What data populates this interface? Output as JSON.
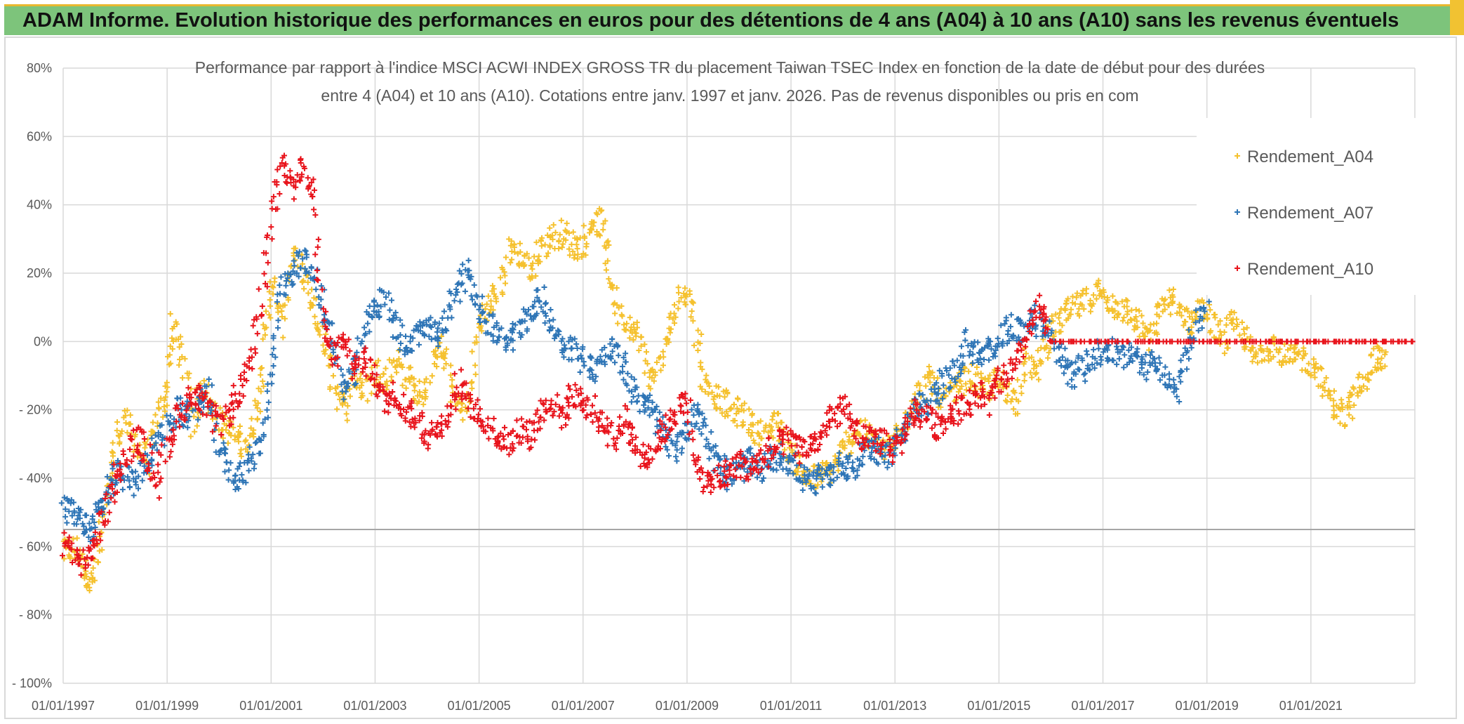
{
  "banner": {
    "text": "ADAM Informe. Evolution historique des performances en euros pour des détentions de 4 ans (A04) à 10 ans (A10) sans les revenus éventuels"
  },
  "chart_data": {
    "type": "scatter",
    "title_line1": "Performance par rapport à l'indice MSCI ACWI INDEX GROSS TR  du placement Taiwan TSEC Index en fonction de la date de début pour des durées",
    "title_line2": "entre 4 (A04) et 10 ans (A10). Cotations entre janv. 1997 et janv. 2026. Pas de revenus disponibles ou pris en com",
    "xlabel": "",
    "ylabel": "",
    "xlim": [
      1997.0,
      2023.0
    ],
    "ylim": [
      -100,
      80
    ],
    "x_tick_labels": [
      "01/01/1997",
      "01/01/1999",
      "01/01/2001",
      "01/01/2003",
      "01/01/2005",
      "01/01/2007",
      "01/01/2009",
      "01/01/2011",
      "01/01/2013",
      "01/01/2015",
      "01/01/2017",
      "01/01/2019",
      "01/01/2021"
    ],
    "y_tick_labels": [
      "80%",
      "60%",
      "40%",
      "20%",
      "0%",
      "- 20%",
      "- 40%",
      "- 60%",
      "- 80%",
      "- 100%"
    ],
    "y_tick_values": [
      80,
      60,
      40,
      20,
      0,
      -20,
      -40,
      -60,
      -80,
      -100
    ],
    "grid": true,
    "legend_position": "top-right",
    "series": [
      {
        "name": "Rendement_A04",
        "color": "#f5c12e",
        "marker": "+",
        "x": [
          1997.0,
          1997.2,
          1997.4,
          1997.55,
          1997.7,
          1997.85,
          1998.0,
          1998.2,
          1998.4,
          1998.6,
          1998.8,
          1999.0,
          1999.1,
          1999.3,
          1999.5,
          1999.7,
          1999.9,
          2000.1,
          2000.3,
          2000.5,
          2000.7,
          2000.85,
          2001.0,
          2001.2,
          2001.4,
          2001.6,
          2001.8,
          2002.0,
          2002.2,
          2002.4,
          2002.6,
          2002.8,
          2003.0,
          2003.2,
          2003.4,
          2003.6,
          2003.8,
          2004.0,
          2004.2,
          2004.4,
          2004.6,
          2004.8,
          2005.0,
          2005.2,
          2005.4,
          2005.6,
          2005.8,
          2006.0,
          2006.2,
          2006.4,
          2006.6,
          2006.8,
          2007.0,
          2007.2,
          2007.35,
          2007.5,
          2007.7,
          2007.9,
          2008.1,
          2008.3,
          2008.5,
          2008.7,
          2008.9,
          2009.1,
          2009.3,
          2009.5,
          2009.7,
          2009.9,
          2010.1,
          2010.3,
          2010.5,
          2010.7,
          2010.9,
          2011.1,
          2011.3,
          2011.5,
          2011.7,
          2011.9,
          2012.1,
          2012.3,
          2012.5,
          2012.7,
          2012.9,
          2013.1,
          2013.3,
          2013.5,
          2013.7,
          2013.9,
          2014.1,
          2014.3,
          2014.5,
          2014.7,
          2014.9,
          2015.1,
          2015.3,
          2015.5,
          2015.7,
          2015.9,
          2016.1,
          2016.3,
          2016.5,
          2016.7,
          2016.9,
          2017.1,
          2017.3,
          2017.5,
          2017.7,
          2017.9,
          2018.1,
          2018.3,
          2018.5,
          2018.7,
          2018.9,
          2019.1,
          2019.3,
          2019.5,
          2019.7,
          2019.9,
          2020.1,
          2020.3,
          2020.5,
          2020.7,
          2020.9,
          2021.1,
          2021.3,
          2021.5,
          2021.7,
          2021.9,
          2022.1,
          2022.3,
          2022.4
        ],
        "y": [
          -62,
          -60,
          -66,
          -71,
          -60,
          -45,
          -30,
          -22,
          -30,
          -35,
          -24,
          -15,
          5,
          -5,
          -25,
          -12,
          -20,
          -25,
          -28,
          -30,
          -22,
          -5,
          18,
          5,
          25,
          20,
          10,
          0,
          -12,
          -20,
          -10,
          -15,
          -8,
          -12,
          -5,
          -10,
          -15,
          -15,
          0,
          -8,
          -20,
          -18,
          5,
          10,
          15,
          28,
          25,
          20,
          28,
          30,
          32,
          28,
          28,
          35,
          35,
          20,
          8,
          5,
          0,
          -12,
          -5,
          5,
          15,
          12,
          -10,
          -15,
          -18,
          -20,
          -22,
          -25,
          -28,
          -22,
          -30,
          -35,
          -40,
          -40,
          -38,
          -35,
          -30,
          -25,
          -28,
          -30,
          -32,
          -25,
          -20,
          -15,
          -10,
          -18,
          -15,
          -12,
          -10,
          -15,
          -12,
          -12,
          -18,
          -5,
          -10,
          0,
          5,
          8,
          10,
          12,
          15,
          12,
          10,
          8,
          5,
          0,
          10,
          12,
          8,
          5,
          10,
          5,
          0,
          5,
          2,
          -5,
          -2,
          0,
          -5,
          -5,
          -5,
          -8,
          -15,
          -20,
          -22,
          -15,
          -8,
          -5,
          -5
        ],
        "note": "approximate trend of the point cloud"
      },
      {
        "name": "Rendement_A07",
        "color": "#2e75b6",
        "marker": "+",
        "x": [
          1997.0,
          1997.2,
          1997.4,
          1997.55,
          1997.7,
          1997.85,
          1998.0,
          1998.2,
          1998.4,
          1998.6,
          1998.8,
          1999.0,
          1999.2,
          1999.4,
          1999.6,
          1999.8,
          2000.0,
          2000.2,
          2000.4,
          2000.6,
          2000.8,
          2001.0,
          2001.2,
          2001.4,
          2001.6,
          2001.8,
          2002.0,
          2002.2,
          2002.4,
          2002.6,
          2002.8,
          2003.0,
          2003.2,
          2003.4,
          2003.6,
          2003.8,
          2004.0,
          2004.2,
          2004.4,
          2004.6,
          2004.8,
          2005.0,
          2005.2,
          2005.4,
          2005.6,
          2005.8,
          2006.0,
          2006.2,
          2006.4,
          2006.6,
          2006.8,
          2007.0,
          2007.2,
          2007.4,
          2007.6,
          2007.8,
          2008.0,
          2008.2,
          2008.4,
          2008.6,
          2008.8,
          2009.0,
          2009.2,
          2009.4,
          2009.6,
          2009.8,
          2010.0,
          2010.2,
          2010.4,
          2010.6,
          2010.8,
          2011.0,
          2011.2,
          2011.4,
          2011.6,
          2011.8,
          2012.0,
          2012.2,
          2012.4,
          2012.6,
          2012.8,
          2013.0,
          2013.2,
          2013.4,
          2013.6,
          2013.8,
          2014.0,
          2014.2,
          2014.4,
          2014.6,
          2014.8,
          2015.0,
          2015.2,
          2015.4,
          2015.6,
          2015.8,
          2016.0,
          2016.2,
          2016.4,
          2016.6,
          2016.8,
          2017.0,
          2017.2,
          2017.4,
          2017.6,
          2017.8,
          2018.0,
          2018.2,
          2018.4,
          2018.6,
          2018.8,
          2019.0
        ],
        "y": [
          -49,
          -50,
          -53,
          -55,
          -50,
          -45,
          -38,
          -40,
          -42,
          -35,
          -30,
          -25,
          -20,
          -22,
          -18,
          -15,
          -30,
          -38,
          -40,
          -35,
          -28,
          -10,
          15,
          18,
          25,
          20,
          10,
          0,
          -15,
          -10,
          5,
          10,
          12,
          5,
          -2,
          2,
          5,
          0,
          8,
          15,
          22,
          10,
          5,
          2,
          0,
          5,
          10,
          12,
          5,
          0,
          -2,
          -5,
          -8,
          -5,
          -2,
          -8,
          -15,
          -18,
          -22,
          -28,
          -32,
          -25,
          -20,
          -28,
          -35,
          -40,
          -38,
          -35,
          -38,
          -35,
          -33,
          -35,
          -40,
          -42,
          -40,
          -38,
          -35,
          -38,
          -32,
          -30,
          -35,
          -30,
          -25,
          -18,
          -20,
          -15,
          -10,
          -8,
          0,
          -5,
          -3,
          0,
          5,
          2,
          8,
          5,
          2,
          -5,
          -10,
          -8,
          -5,
          -3,
          -2,
          -5,
          -3,
          -8,
          -5,
          -10,
          -15,
          -5,
          5,
          10
        ],
        "note": "approximate trend of the point cloud"
      },
      {
        "name": "Rendement_A10",
        "color": "#e8141c",
        "marker": "+",
        "x": [
          1997.0,
          1997.2,
          1997.4,
          1997.6,
          1997.8,
          1998.0,
          1998.2,
          1998.4,
          1998.6,
          1998.8,
          1999.0,
          1999.2,
          1999.4,
          1999.6,
          1999.8,
          2000.0,
          2000.2,
          2000.4,
          2000.6,
          2000.8,
          2001.0,
          2001.2,
          2001.4,
          2001.6,
          2001.8,
          2002.0,
          2002.2,
          2002.4,
          2002.6,
          2002.8,
          2003.0,
          2003.2,
          2003.4,
          2003.6,
          2003.8,
          2004.0,
          2004.2,
          2004.4,
          2004.6,
          2004.8,
          2005.0,
          2005.2,
          2005.4,
          2005.6,
          2005.8,
          2006.0,
          2006.2,
          2006.4,
          2006.6,
          2006.8,
          2007.0,
          2007.2,
          2007.4,
          2007.6,
          2007.8,
          2008.0,
          2008.2,
          2008.4,
          2008.6,
          2008.8,
          2009.0,
          2009.2,
          2009.4,
          2009.6,
          2009.8,
          2010.0,
          2010.2,
          2010.4,
          2010.6,
          2010.8,
          2011.0,
          2011.2,
          2011.4,
          2011.6,
          2011.8,
          2012.0,
          2012.2,
          2012.4,
          2012.6,
          2012.8,
          2013.0,
          2013.2,
          2013.4,
          2013.6,
          2013.8,
          2014.0,
          2014.2,
          2014.4,
          2014.6,
          2014.8,
          2015.0,
          2015.2,
          2015.4,
          2015.6,
          2015.8,
          2016.0,
          2016.5,
          2017.0,
          2017.5,
          2018.0,
          2018.5,
          2019.0,
          2019.5,
          2020.0,
          2020.5,
          2021.0,
          2021.5,
          2022.0,
          2022.5,
          2023.0
        ],
        "y": [
          -58,
          -62,
          -65,
          -60,
          -50,
          -40,
          -35,
          -28,
          -32,
          -42,
          -30,
          -22,
          -18,
          -15,
          -20,
          -25,
          -20,
          -15,
          -8,
          10,
          35,
          55,
          45,
          50,
          45,
          5,
          -5,
          0,
          -8,
          -5,
          -10,
          -18,
          -15,
          -20,
          -22,
          -28,
          -25,
          -22,
          -12,
          -18,
          -22,
          -25,
          -28,
          -30,
          -25,
          -28,
          -20,
          -18,
          -22,
          -15,
          -18,
          -20,
          -25,
          -28,
          -22,
          -30,
          -35,
          -30,
          -25,
          -20,
          -18,
          -38,
          -42,
          -40,
          -38,
          -35,
          -38,
          -35,
          -32,
          -30,
          -28,
          -32,
          -30,
          -28,
          -22,
          -20,
          -25,
          -28,
          -30,
          -28,
          -32,
          -25,
          -20,
          -22,
          -25,
          -22,
          -20,
          -18,
          -15,
          -18,
          -12,
          -10,
          -5,
          5,
          10,
          0,
          0,
          0,
          0,
          0,
          0,
          0,
          0,
          0,
          0,
          0,
          0,
          0,
          0,
          0
        ],
        "note": "approximate trend of the point cloud; flat 0% from 2016 onward"
      }
    ]
  }
}
